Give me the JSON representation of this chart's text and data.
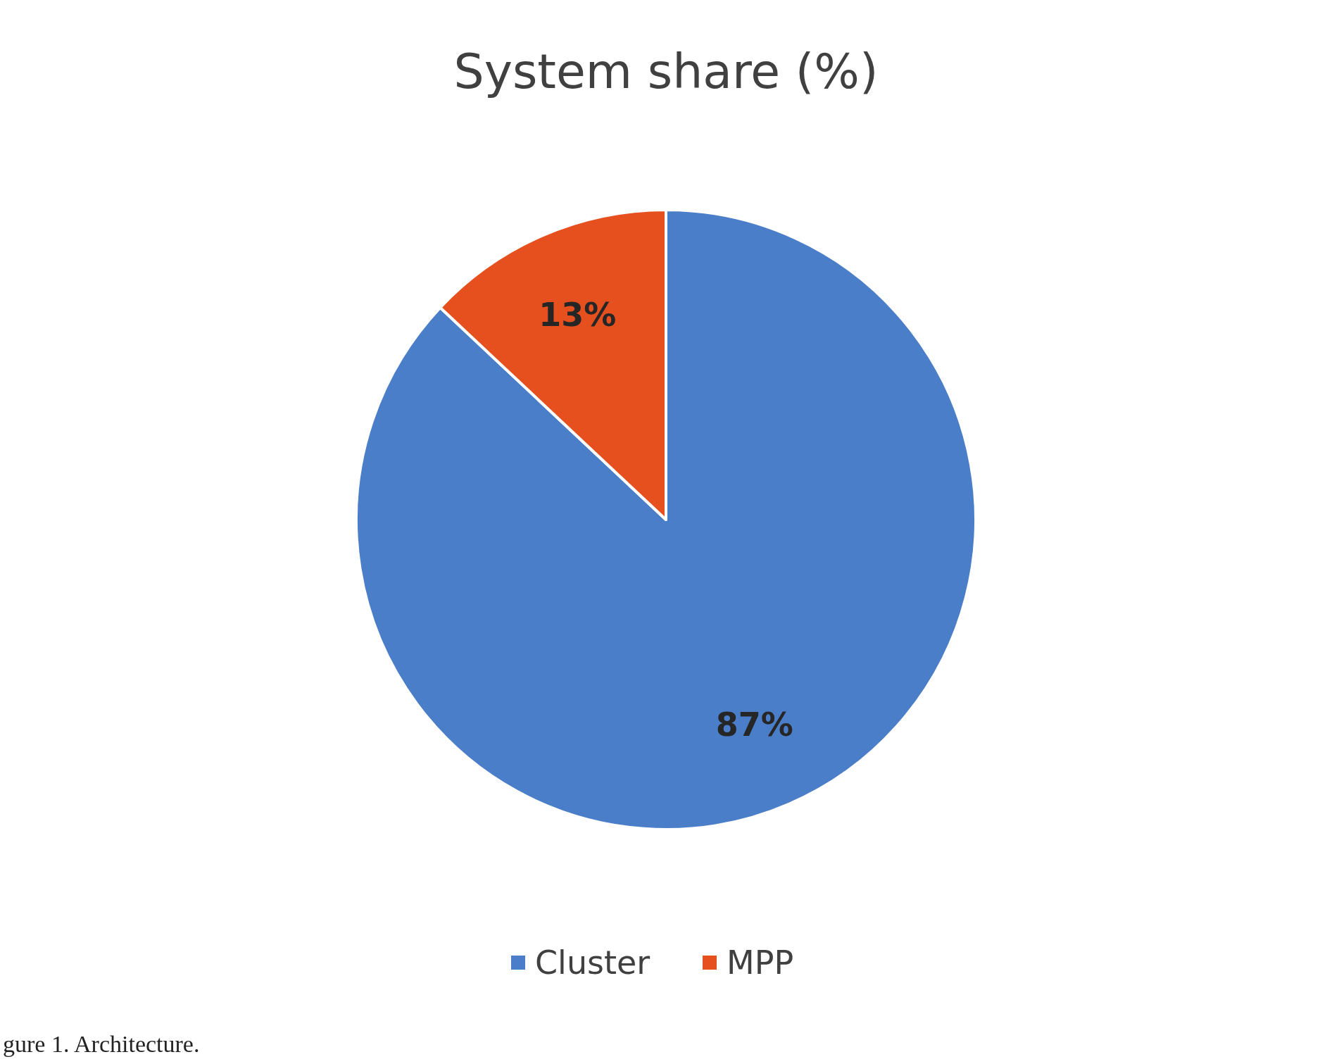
{
  "chart_data": {
    "type": "pie",
    "title": "System share (%)",
    "categories": [
      "Cluster",
      "MPP"
    ],
    "values": [
      87,
      13
    ],
    "colors": [
      "#4a7ec8",
      "#e5501e"
    ],
    "value_labels": [
      "87%",
      "13%"
    ],
    "legend": "bottom",
    "annotations": [
      "gure 1. Architecture."
    ]
  }
}
